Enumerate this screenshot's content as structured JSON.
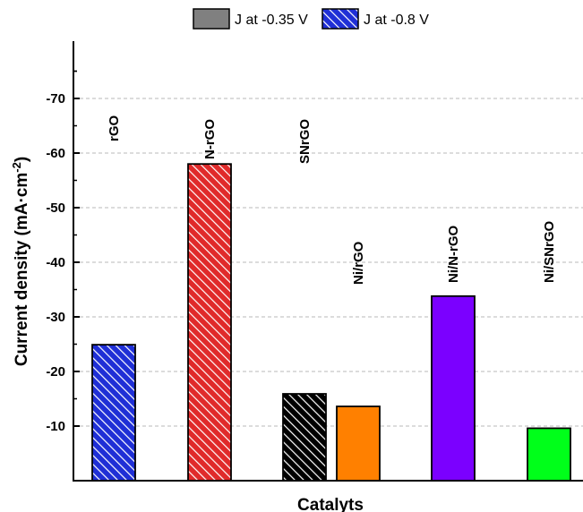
{
  "chart_data": {
    "type": "bar",
    "categories": [
      "rGO",
      "N-rGO",
      "SNrGO",
      "Ni/rGO",
      "Ni/N-rGO",
      "Ni/SNrGO"
    ],
    "values": [
      -24.9,
      -58.0,
      -15.9,
      -13.6,
      -33.8,
      -9.6
    ],
    "bar_colors": [
      "#1f2fd6",
      "#e02a2a",
      "#000000",
      "#ff8000",
      "#7b00ff",
      "#00ff1a"
    ],
    "bar_patterns": [
      "hatch",
      "hatch",
      "hatch",
      "solid",
      "solid",
      "solid"
    ],
    "xlabel": "Catalyts",
    "ylabel": "Current density (mA·cm",
    "ylabel_sup": "-2",
    "ylabel_end": ")",
    "ylim": [
      0,
      -80
    ],
    "y_axis_reversed": true,
    "yticks": [
      -10,
      -20,
      -30,
      -40,
      -50,
      -60,
      -70
    ],
    "ytick_labels": [
      "-10",
      "-20",
      "-30",
      "-40",
      "-50",
      "-60",
      "-70"
    ],
    "grid": "horizontal dashed",
    "legend": {
      "placement": "top-center",
      "entries": [
        {
          "label": "J at -0.35 V",
          "color": "#808080",
          "pattern": "solid"
        },
        {
          "label": "J at -0.8 V",
          "color": "#1f2fd6",
          "pattern": "hatch"
        }
      ]
    }
  }
}
